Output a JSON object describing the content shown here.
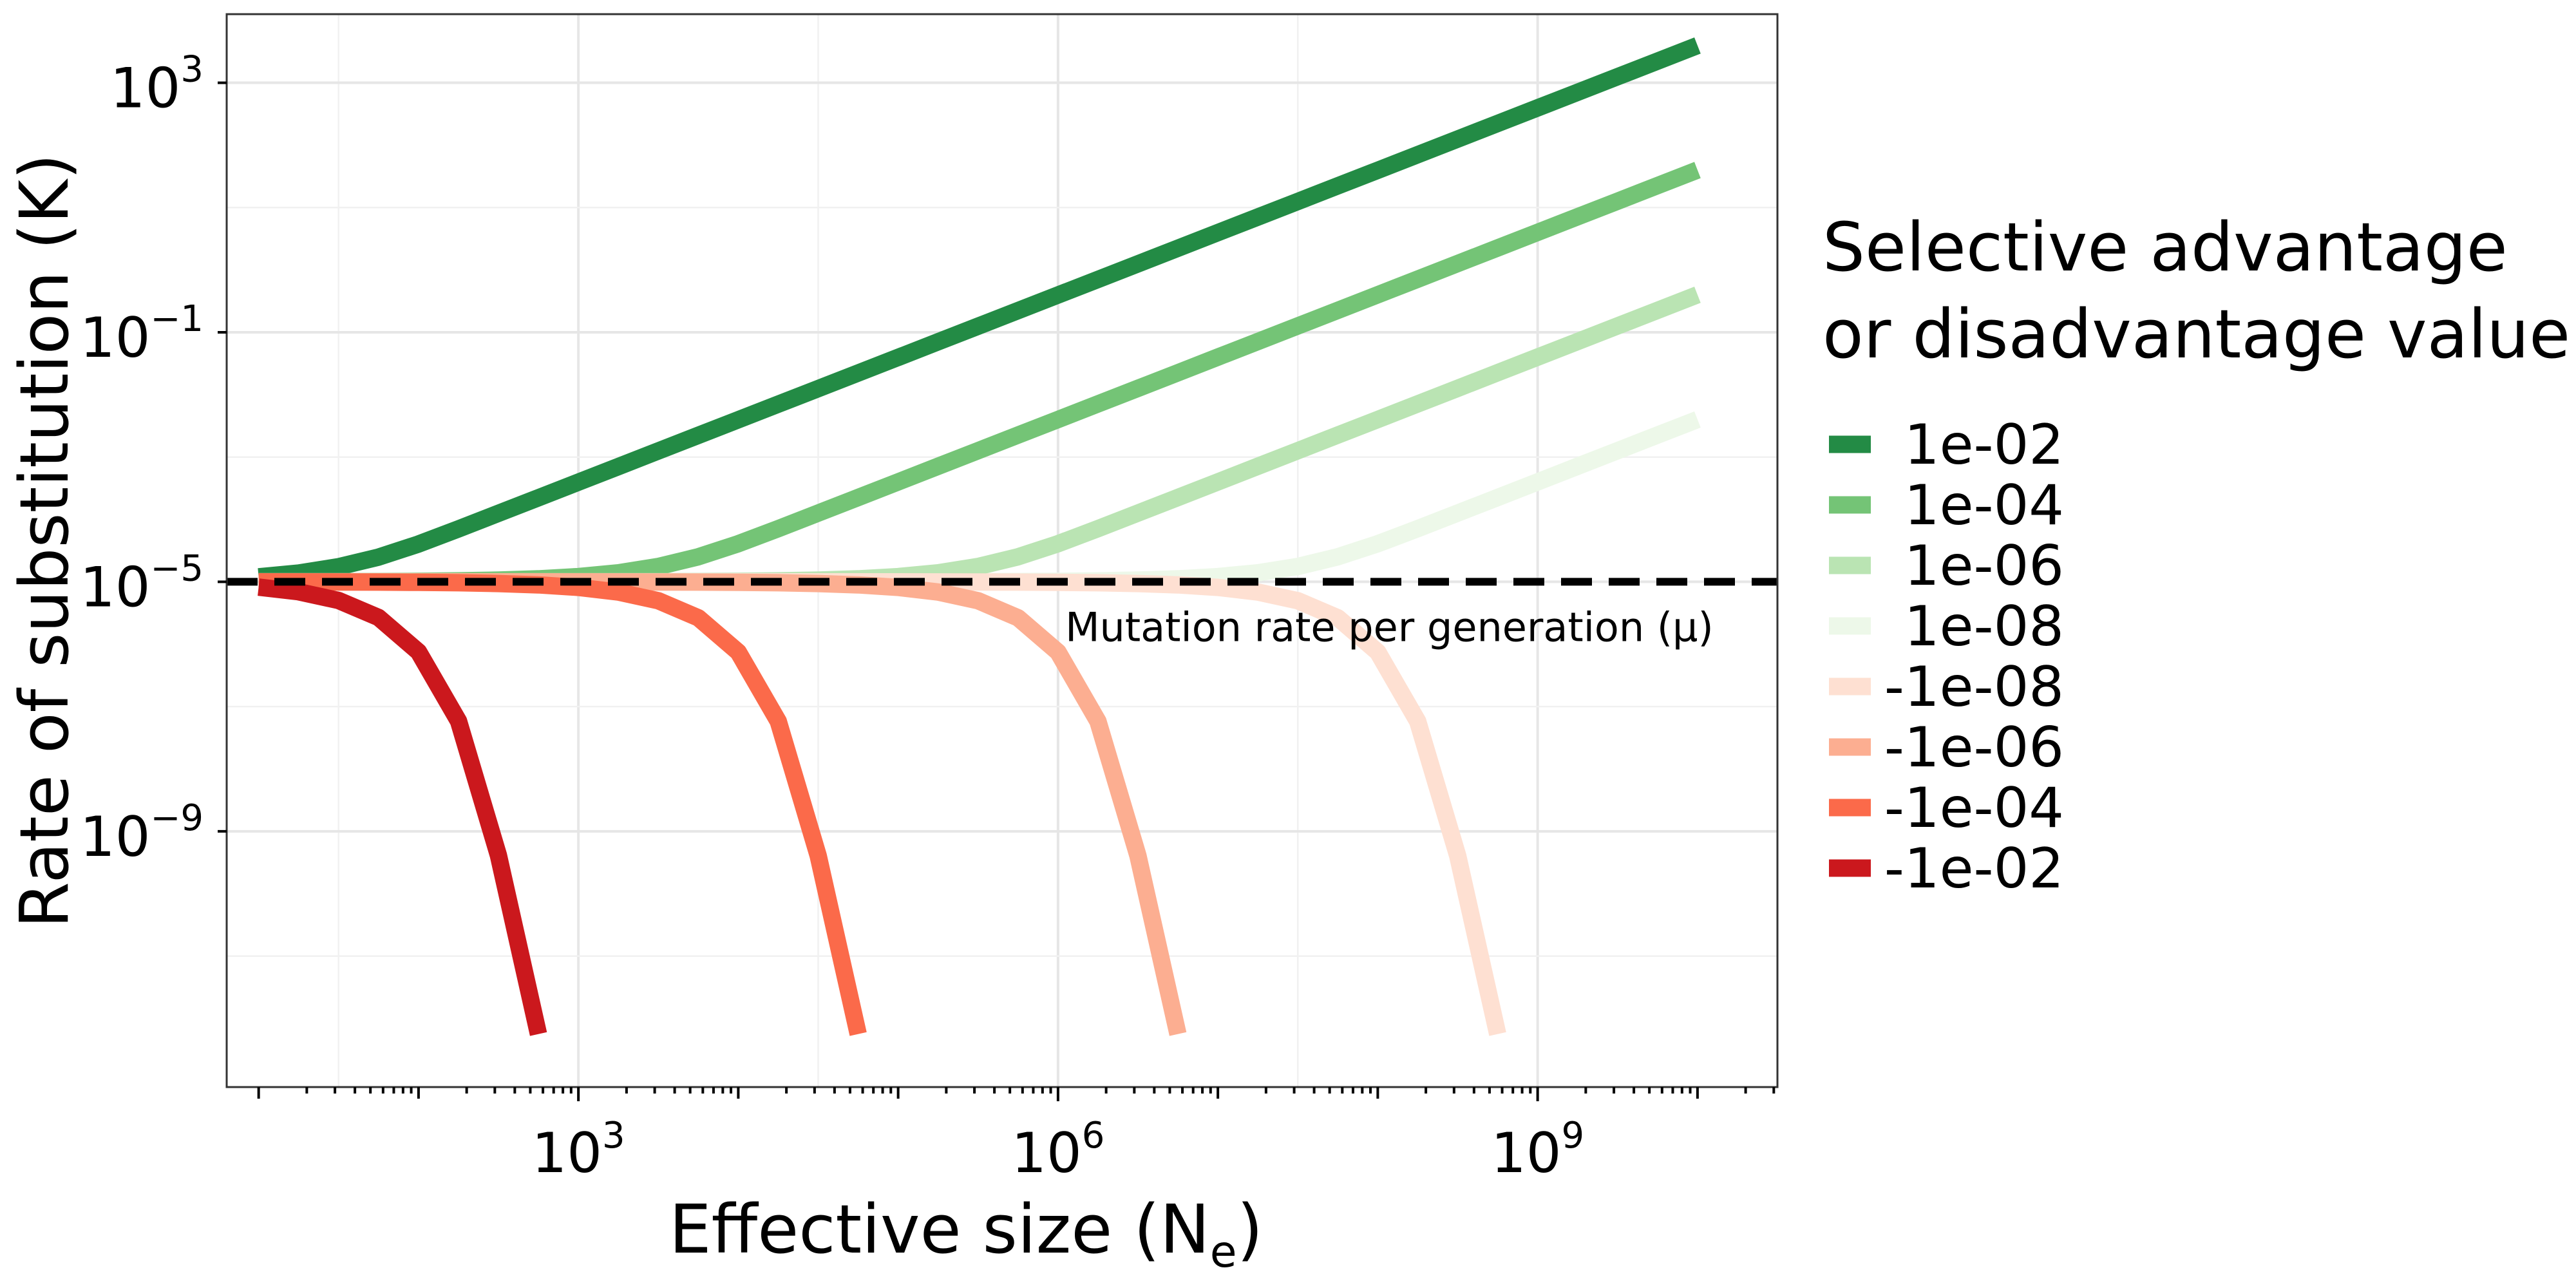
{
  "chart_data": {
    "type": "line",
    "xlabel": "Effective size (N",
    "xlabel_sub": "e",
    "xlabel_end": ")",
    "ylabel": "Rate of substitution (K)",
    "x_scale": "log10",
    "y_scale": "log10",
    "xlim_exp": [
      0.8,
      10.5
    ],
    "ylim_exp": [
      -13.1,
      4.1
    ],
    "x_ticks": [
      {
        "exp": 3,
        "base": "10",
        "sup": "3"
      },
      {
        "exp": 6,
        "base": "10",
        "sup": "6"
      },
      {
        "exp": 9,
        "base": "10",
        "sup": "9"
      }
    ],
    "y_ticks": [
      {
        "exp": 3,
        "base": "10",
        "sup": "3"
      },
      {
        "exp": -1,
        "base": "10",
        "sup": "−1"
      },
      {
        "exp": -5,
        "base": "10",
        "sup": "−5"
      },
      {
        "exp": -9,
        "base": "10",
        "sup": "−9"
      }
    ],
    "y_minor_grid": [
      1,
      -3,
      -7,
      -11
    ],
    "grid": true,
    "legend_title_line1": "Selective advantage",
    "legend_title_line2": "or disadvantage value (s)",
    "legend_position": "right",
    "mutation_rate": 1e-05,
    "reference_label": "Mutation rate per generation (μ)",
    "ne_range": [
      10,
      10000000000
    ],
    "series": [
      {
        "name": "1e-02",
        "s": 0.01,
        "color": "#238B45"
      },
      {
        "name": "1e-04",
        "s": 0.0001,
        "color": "#74C476"
      },
      {
        "name": "1e-06",
        "s": 1e-06,
        "color": "#BAE4B3"
      },
      {
        "name": "1e-08",
        "s": 1e-08,
        "color": "#EDF8E9"
      },
      {
        "name": "-1e-08",
        "s": -1e-08,
        "color": "#FEE0D2"
      },
      {
        "name": "-1e-06",
        "s": -1e-06,
        "color": "#FCAE91"
      },
      {
        "name": "-1e-04",
        "s": -0.0001,
        "color": "#FB6A4A"
      },
      {
        "name": "-1e-02",
        "s": -0.01,
        "color": "#CB181D"
      }
    ]
  }
}
